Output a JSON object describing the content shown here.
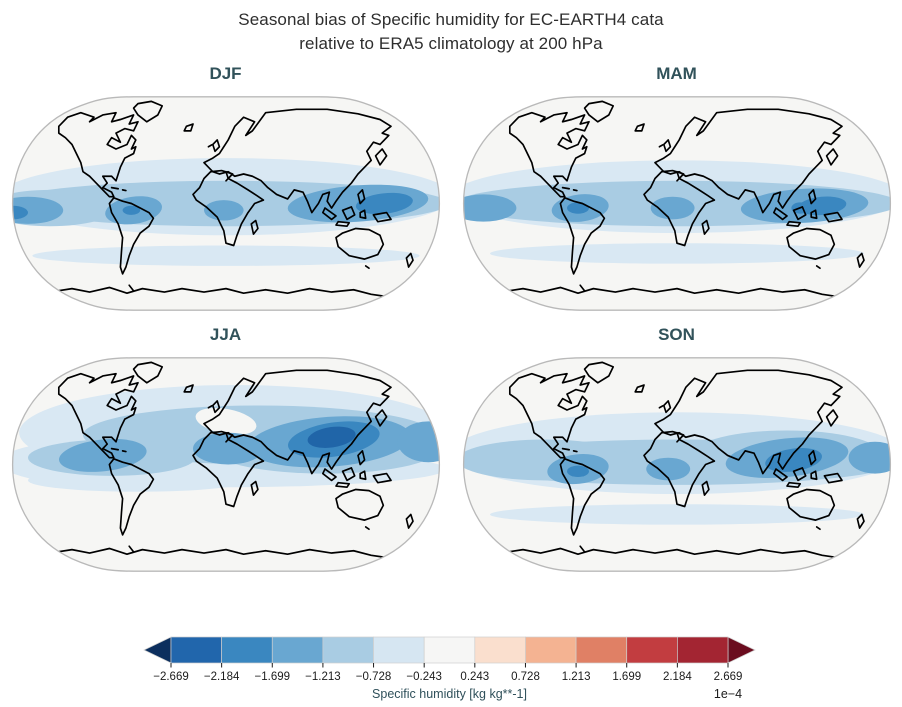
{
  "title": {
    "line1": "Seasonal bias of Specific humidity for EC-EARTH4 cata",
    "line2": "relative to ERA5 climatology at 200 hPa",
    "color": "#2e2e2e"
  },
  "chart_data": {
    "type": "heatmap",
    "subtype": "filled-contour-world-maps",
    "projection": "robinson",
    "variable": "Specific humidity bias",
    "model": "EC-EARTH4",
    "reference": "ERA5 climatology",
    "pressure_level": "200 hPa",
    "units_scale": "1e−4",
    "colorbar_label": "Specific humidity [kg kg**-1]",
    "contour_levels": [
      -2.669,
      -2.184,
      -1.699,
      -1.213,
      -0.728,
      -0.243,
      0.243,
      0.728,
      1.213,
      1.699,
      2.184,
      2.669
    ],
    "legend_position": "bottom",
    "panel_title_color": "#31525a",
    "map_background": "#f6f6f4",
    "map_outline_color": "#b9b9b9",
    "coast_color": "#000000",
    "levels": {
      "bg": "#f6f6f4",
      "b1": "#d9e8f3",
      "b2": "#a9cce3",
      "b3": "#69a7d1",
      "b4": "#3a87c0",
      "b5": "#2065a8"
    },
    "panels": [
      {
        "label": "DJF",
        "pattern": "negative bias band across tropics; strongest over Amazon, central Africa, Maritime Continent and west Pacific",
        "blobs": [
          [
            "b1",
            100,
            47,
            103,
            17,
            0
          ],
          [
            "b1",
            100,
            73,
            88,
            4.5,
            0
          ],
          [
            "b2",
            100,
            50,
            101,
            10,
            0
          ],
          [
            "b2",
            20,
            52,
            30,
            8,
            0
          ],
          [
            "b3",
            10,
            53,
            16,
            6,
            0
          ],
          [
            "b3",
            58,
            53,
            13,
            6,
            -8
          ],
          [
            "b3",
            99,
            53,
            9,
            4.5,
            0
          ],
          [
            "b3",
            160,
            50,
            32,
            8,
            -4
          ],
          [
            "b4",
            172,
            50,
            13,
            4.5,
            -6
          ],
          [
            "b4",
            3,
            54,
            7,
            3,
            0
          ],
          [
            "b4",
            57,
            53,
            4,
            2,
            0
          ]
        ]
      },
      {
        "label": "MAM",
        "pattern": "negative bias band across tropics; cores over northern South America, equatorial Africa and Maritime Continent",
        "blobs": [
          [
            "b1",
            100,
            47,
            103,
            16,
            0
          ],
          [
            "b1",
            100,
            72,
            85,
            4.5,
            0
          ],
          [
            "b2",
            100,
            50,
            101,
            10,
            0
          ],
          [
            "b3",
            12,
            52,
            15,
            6,
            0
          ],
          [
            "b3",
            56,
            52,
            13,
            6,
            -6
          ],
          [
            "b3",
            98,
            52,
            10,
            5,
            0
          ],
          [
            "b3",
            158,
            51,
            29,
            7.5,
            -3
          ],
          [
            "b4",
            166,
            51,
            11,
            4,
            -5
          ],
          [
            "b4",
            156,
            52,
            4,
            2.5,
            0
          ],
          [
            "b4",
            55,
            52,
            5,
            2.5,
            0
          ]
        ]
      },
      {
        "label": "JJA",
        "pattern": "strong negative bias over South Asia / Tibetan Plateau extending across northern midlatitudes; near-zero over Mediterranean and southern oceans",
        "blobs": [
          [
            "b1",
            104,
            36,
            98,
            21,
            0
          ],
          [
            "b1",
            55,
            49,
            58,
            11,
            0
          ],
          [
            "b1",
            100,
            52,
            100,
            8,
            0
          ],
          [
            "b1",
            60,
            57,
            50,
            5,
            0
          ],
          [
            "b2",
            115,
            37,
            80,
            13,
            0
          ],
          [
            "b2",
            48,
            47,
            38,
            8,
            0
          ],
          [
            "b2",
            145,
            44,
            50,
            10,
            0
          ],
          [
            "bg",
            100,
            31,
            14,
            5.5,
            10
          ],
          [
            "b3",
            147,
            40,
            37,
            11,
            -4
          ],
          [
            "b3",
            44,
            46,
            20,
            7,
            -6
          ],
          [
            "b3",
            101,
            43,
            16,
            7,
            0
          ],
          [
            "b3",
            192,
            40,
            14,
            9,
            0
          ],
          [
            "b4",
            149,
            39,
            21,
            7.5,
            -8
          ],
          [
            "b5",
            148,
            38,
            11,
            4.5,
            -8
          ]
        ]
      },
      {
        "label": "SON",
        "pattern": "negative bias band across tropics and NH subtropics; strongest over Bay of Bengal / Southeast Asia, Amazon and central Africa",
        "blobs": [
          [
            "b1",
            100,
            45,
            103,
            18,
            0
          ],
          [
            "b1",
            100,
            72,
            85,
            4.5,
            0
          ],
          [
            "b2",
            100,
            49,
            100,
            10,
            0
          ],
          [
            "b2",
            150,
            45,
            42,
            10,
            0
          ],
          [
            "b2",
            40,
            48,
            40,
            9,
            0
          ],
          [
            "b3",
            55,
            52,
            14,
            6.5,
            -6
          ],
          [
            "b3",
            96,
            52,
            10,
            5,
            0
          ],
          [
            "b3",
            150,
            47,
            28,
            8.5,
            -6
          ],
          [
            "b3",
            190,
            47,
            12,
            7,
            0
          ],
          [
            "b4",
            153,
            48,
            13,
            5,
            -8
          ],
          [
            "b4",
            55,
            53,
            5,
            2.5,
            0
          ]
        ]
      }
    ],
    "colorbar": {
      "label": "Specific humidity [kg kg**-1]",
      "label_color": "#2f505a",
      "offset_label": "1e−4",
      "ticks": [
        "−2.669",
        "−2.184",
        "−1.699",
        "−1.213",
        "−0.728",
        "−0.243",
        "0.243",
        "0.728",
        "1.213",
        "1.699",
        "2.184",
        "2.669"
      ],
      "values": [
        -2.669,
        -2.184,
        -1.699,
        -1.213,
        -0.728,
        -0.243,
        0.243,
        0.728,
        1.213,
        1.699,
        2.184,
        2.669
      ],
      "segment_colors": [
        "#2166ac",
        "#3a87c0",
        "#69a7d1",
        "#a9cce3",
        "#d6e6f2",
        "#f6f6f5",
        "#fadfce",
        "#f4b392",
        "#e08065",
        "#c23d40",
        "#a32532"
      ],
      "extend_left_color": "#0c2f5e",
      "extend_right_color": "#6b0d1f",
      "edge_color": "#cfcfcf",
      "tick_color": "#1b1b1b"
    }
  }
}
